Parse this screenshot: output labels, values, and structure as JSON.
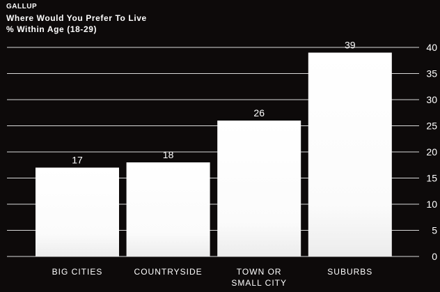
{
  "header": {
    "source": "GALLUP",
    "title": "Where Would You Prefer To Live",
    "subtitle": "% Within Age (18-29)"
  },
  "colors": {
    "background": "#0d0a0a",
    "bar_top": "#ffffff",
    "bar_bottom": "#f2f2f2",
    "gridline": "#d9d9d9",
    "text": "#ffffff"
  },
  "chart_data": {
    "type": "bar",
    "title": "Where Would You Prefer To Live",
    "subtitle": "% Within Age (18-29)",
    "categories": [
      [
        "BIG CITIES"
      ],
      [
        "COUNTRYSIDE"
      ],
      [
        "TOWN OR",
        "SMALL CITY"
      ],
      [
        "SUBURBS"
      ]
    ],
    "values": [
      17,
      18,
      26,
      39
    ],
    "data_labels": [
      "17",
      "18",
      "26",
      "39"
    ],
    "ylim": [
      0,
      40
    ],
    "yticks": [
      0,
      5,
      10,
      15,
      20,
      25,
      30,
      35,
      40
    ],
    "y_axis_side": "right",
    "grid": true,
    "legend": "none"
  }
}
